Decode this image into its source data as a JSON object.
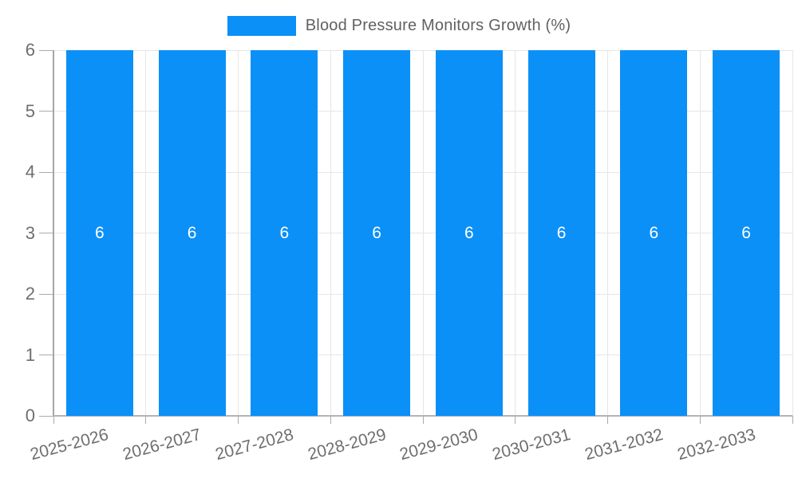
{
  "legend": {
    "label": "Blood Pressure Monitors Growth (%)",
    "swatch_color": "#0b90f8"
  },
  "chart_data": {
    "type": "bar",
    "title": "Blood Pressure Monitors Growth (%)",
    "categories": [
      "2025-2026",
      "2026-2027",
      "2027-2028",
      "2028-2029",
      "2029-2030",
      "2030-2031",
      "2031-2032",
      "2032-2033"
    ],
    "values": [
      6,
      6,
      6,
      6,
      6,
      6,
      6,
      6
    ],
    "bar_labels": [
      "6",
      "6",
      "6",
      "6",
      "6",
      "6",
      "6",
      "6"
    ],
    "xlabel": "",
    "ylabel": "",
    "ylim": [
      0,
      6
    ],
    "yticks": [
      0,
      1,
      2,
      3,
      4,
      5,
      6
    ],
    "grid": true,
    "legend_position": "top-center",
    "bar_color": "#0b90f8",
    "bar_label_color": "#ffffff",
    "grid_color": "#e6e6e6",
    "axis_color": "#a6a6a6",
    "tick_label_color": "#6e6e6e",
    "x_label_rotation_deg": -15
  }
}
